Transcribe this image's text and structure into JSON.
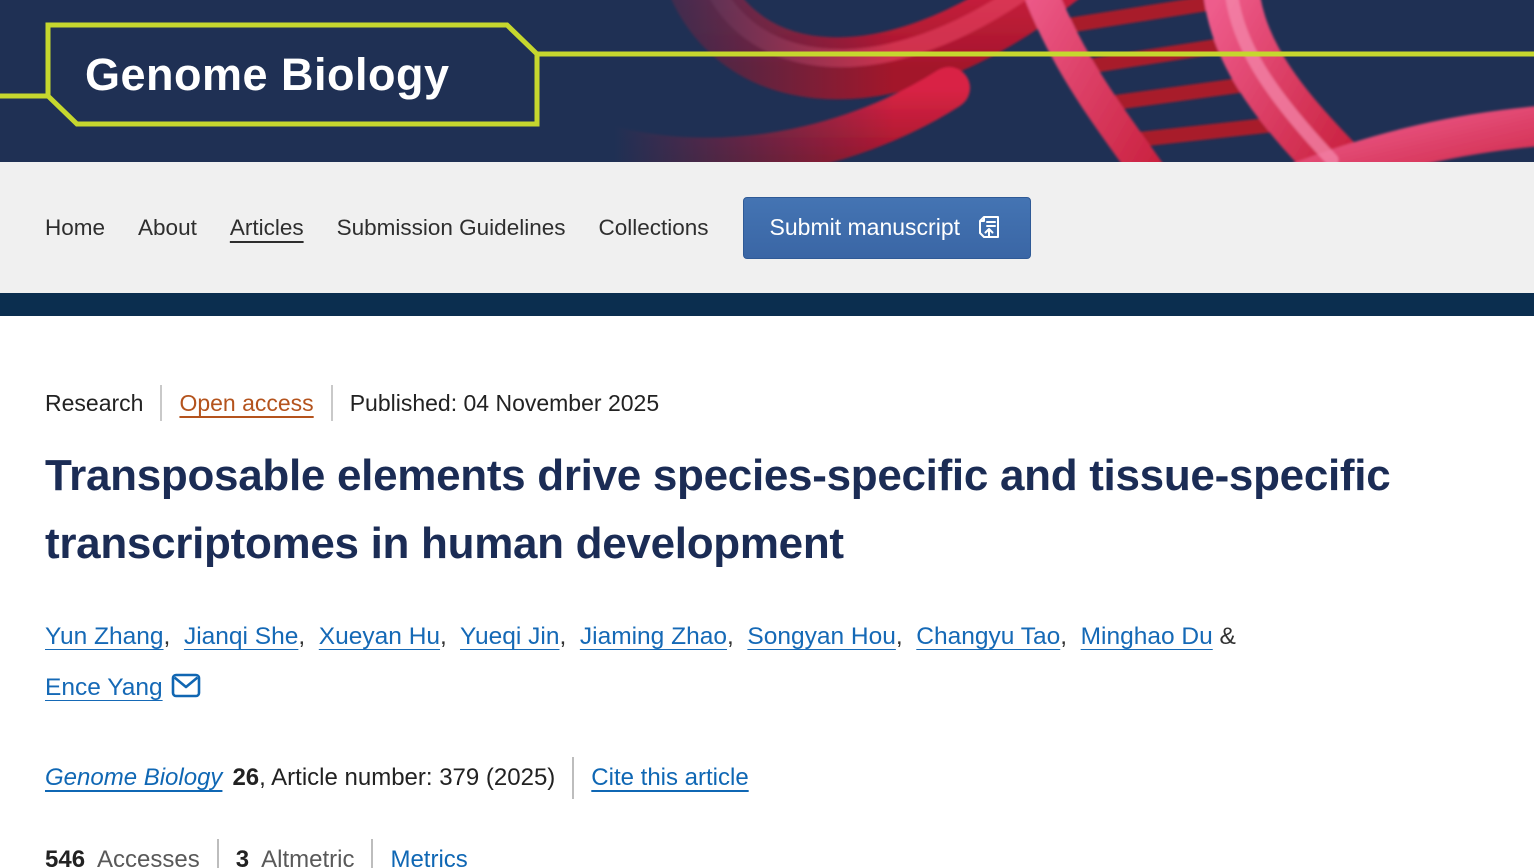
{
  "brand": {
    "logo_text": "Genome Biology"
  },
  "nav": {
    "items": [
      {
        "label": "Home"
      },
      {
        "label": "About"
      },
      {
        "label": "Articles"
      },
      {
        "label": "Submission Guidelines"
      },
      {
        "label": "Collections"
      }
    ],
    "submit_label": "Submit manuscript"
  },
  "article": {
    "type_label": "Research",
    "access_label": "Open access",
    "published_label": "Published: 04 November 2025",
    "title": "Transposable elements drive species-specific and tissue-specific transcriptomes in human development",
    "authors": [
      "Yun Zhang",
      "Jianqi She",
      "Xueyan Hu",
      "Yueqi Jin",
      "Jiaming Zhao",
      "Songyan Hou",
      "Changyu Tao",
      "Minghao Du",
      "Ence Yang"
    ],
    "journal_name": "Genome Biology",
    "volume": "26",
    "article_number_text": ", Article number: 379 (2025)",
    "cite_label": "Cite this article",
    "metrics": {
      "accesses_value": "546",
      "accesses_label": "Accesses",
      "altmetric_value": "3",
      "altmetric_label": "Altmetric",
      "metrics_label": "Metrics"
    }
  },
  "colors": {
    "header_navy": "#1f3054",
    "strip_navy": "#0b2e4f",
    "accent_lime": "#c6d72e",
    "link_blue": "#0f67b4",
    "open_access_orange": "#b4531d",
    "title_navy": "#1b2c55",
    "button_blue": "#3a66a5",
    "nav_gray": "#f0f0f0"
  }
}
